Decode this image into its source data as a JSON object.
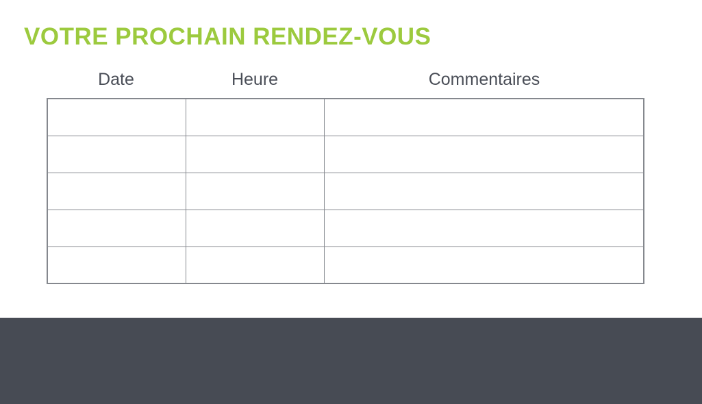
{
  "page": {
    "title": "VOTRE PROCHAIN RENDEZ-VOUS"
  },
  "table": {
    "columns": [
      {
        "label": "Date"
      },
      {
        "label": "Heure"
      },
      {
        "label": "Commentaires"
      }
    ],
    "rows": [
      {
        "date": "",
        "heure": "",
        "commentaires": ""
      },
      {
        "date": "",
        "heure": "",
        "commentaires": ""
      },
      {
        "date": "",
        "heure": "",
        "commentaires": ""
      },
      {
        "date": "",
        "heure": "",
        "commentaires": ""
      },
      {
        "date": "",
        "heure": "",
        "commentaires": ""
      }
    ]
  },
  "colors": {
    "accent_green": "#9cca3e",
    "header_text": "#4a4e57",
    "table_border": "#85888e",
    "footer_bg": "#474b54"
  }
}
